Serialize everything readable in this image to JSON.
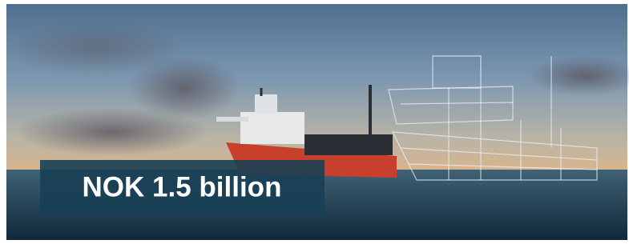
{
  "caption": "NOK 1.5 billion"
}
